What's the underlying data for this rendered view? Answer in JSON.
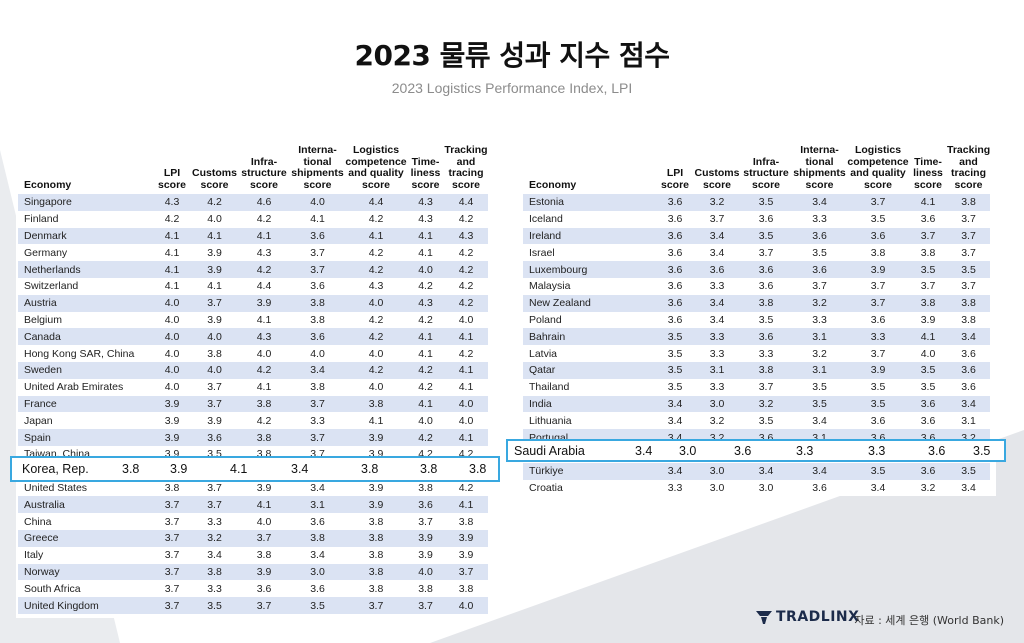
{
  "title": "2023 물류 성과 지수 점수",
  "subtitle": "2023 Logistics Performance Index, LPI",
  "headers": {
    "economy": "Economy",
    "lpi": [
      "LPI",
      "score"
    ],
    "customs": [
      "Customs",
      "score"
    ],
    "infra": [
      "Infra-",
      "structure",
      "score"
    ],
    "intl": [
      "Interna-",
      "tional",
      "shipments",
      "score"
    ],
    "logistics": [
      "Logistics",
      "competence",
      "and quality",
      "score"
    ],
    "timeliness": [
      "Time-",
      "liness",
      "score"
    ],
    "tracking": [
      "Tracking",
      "and",
      "tracing",
      "score"
    ]
  },
  "left_rows": [
    [
      "Singapore",
      "4.3",
      "4.2",
      "4.6",
      "4.0",
      "4.4",
      "4.3",
      "4.4"
    ],
    [
      "Finland",
      "4.2",
      "4.0",
      "4.2",
      "4.1",
      "4.2",
      "4.3",
      "4.2"
    ],
    [
      "Denmark",
      "4.1",
      "4.1",
      "4.1",
      "3.6",
      "4.1",
      "4.1",
      "4.3"
    ],
    [
      "Germany",
      "4.1",
      "3.9",
      "4.3",
      "3.7",
      "4.2",
      "4.1",
      "4.2"
    ],
    [
      "Netherlands",
      "4.1",
      "3.9",
      "4.2",
      "3.7",
      "4.2",
      "4.0",
      "4.2"
    ],
    [
      "Switzerland",
      "4.1",
      "4.1",
      "4.4",
      "3.6",
      "4.3",
      "4.2",
      "4.2"
    ],
    [
      "Austria",
      "4.0",
      "3.7",
      "3.9",
      "3.8",
      "4.0",
      "4.3",
      "4.2"
    ],
    [
      "Belgium",
      "4.0",
      "3.9",
      "4.1",
      "3.8",
      "4.2",
      "4.2",
      "4.0"
    ],
    [
      "Canada",
      "4.0",
      "4.0",
      "4.3",
      "3.6",
      "4.2",
      "4.1",
      "4.1"
    ],
    [
      "Hong Kong SAR, China",
      "4.0",
      "3.8",
      "4.0",
      "4.0",
      "4.0",
      "4.1",
      "4.2"
    ],
    [
      "Sweden",
      "4.0",
      "4.0",
      "4.2",
      "3.4",
      "4.2",
      "4.2",
      "4.1"
    ],
    [
      "United Arab Emirates",
      "4.0",
      "3.7",
      "4.1",
      "3.8",
      "4.0",
      "4.2",
      "4.1"
    ],
    [
      "France",
      "3.9",
      "3.7",
      "3.8",
      "3.7",
      "3.8",
      "4.1",
      "4.0"
    ],
    [
      "Japan",
      "3.9",
      "3.9",
      "4.2",
      "3.3",
      "4.1",
      "4.0",
      "4.0"
    ],
    [
      "Spain",
      "3.9",
      "3.6",
      "3.8",
      "3.7",
      "3.9",
      "4.2",
      "4.1"
    ],
    [
      "Taiwan, China",
      "3.9",
      "3.5",
      "3.8",
      "3.7",
      "3.9",
      "4.2",
      "4.2"
    ],
    [
      "Korea, Rep.",
      "3.8",
      "3.9",
      "4.1",
      "3.4",
      "3.8",
      "3.8",
      "3.8"
    ],
    [
      "United States",
      "3.8",
      "3.7",
      "3.9",
      "3.4",
      "3.9",
      "3.8",
      "4.2"
    ],
    [
      "Australia",
      "3.7",
      "3.7",
      "4.1",
      "3.1",
      "3.9",
      "3.6",
      "4.1"
    ],
    [
      "China",
      "3.7",
      "3.3",
      "4.0",
      "3.6",
      "3.8",
      "3.7",
      "3.8"
    ],
    [
      "Greece",
      "3.7",
      "3.2",
      "3.7",
      "3.8",
      "3.8",
      "3.9",
      "3.9"
    ],
    [
      "Italy",
      "3.7",
      "3.4",
      "3.8",
      "3.4",
      "3.8",
      "3.9",
      "3.9"
    ],
    [
      "Norway",
      "3.7",
      "3.8",
      "3.9",
      "3.0",
      "3.8",
      "4.0",
      "3.7"
    ],
    [
      "South Africa",
      "3.7",
      "3.3",
      "3.6",
      "3.6",
      "3.8",
      "3.8",
      "3.8"
    ],
    [
      "United Kingdom",
      "3.7",
      "3.5",
      "3.7",
      "3.5",
      "3.7",
      "3.7",
      "4.0"
    ]
  ],
  "right_rows": [
    [
      "Estonia",
      "3.6",
      "3.2",
      "3.5",
      "3.4",
      "3.7",
      "4.1",
      "3.8"
    ],
    [
      "Iceland",
      "3.6",
      "3.7",
      "3.6",
      "3.3",
      "3.5",
      "3.6",
      "3.7"
    ],
    [
      "Ireland",
      "3.6",
      "3.4",
      "3.5",
      "3.6",
      "3.6",
      "3.7",
      "3.7"
    ],
    [
      "Israel",
      "3.6",
      "3.4",
      "3.7",
      "3.5",
      "3.8",
      "3.8",
      "3.7"
    ],
    [
      "Luxembourg",
      "3.6",
      "3.6",
      "3.6",
      "3.6",
      "3.9",
      "3.5",
      "3.5"
    ],
    [
      "Malaysia",
      "3.6",
      "3.3",
      "3.6",
      "3.7",
      "3.7",
      "3.7",
      "3.7"
    ],
    [
      "New Zealand",
      "3.6",
      "3.4",
      "3.8",
      "3.2",
      "3.7",
      "3.8",
      "3.8"
    ],
    [
      "Poland",
      "3.6",
      "3.4",
      "3.5",
      "3.3",
      "3.6",
      "3.9",
      "3.8"
    ],
    [
      "Bahrain",
      "3.5",
      "3.3",
      "3.6",
      "3.1",
      "3.3",
      "4.1",
      "3.4"
    ],
    [
      "Latvia",
      "3.5",
      "3.3",
      "3.3",
      "3.2",
      "3.7",
      "4.0",
      "3.6"
    ],
    [
      "Qatar",
      "3.5",
      "3.1",
      "3.8",
      "3.1",
      "3.9",
      "3.5",
      "3.6"
    ],
    [
      "Thailand",
      "3.5",
      "3.3",
      "3.7",
      "3.5",
      "3.5",
      "3.5",
      "3.6"
    ],
    [
      "India",
      "3.4",
      "3.0",
      "3.2",
      "3.5",
      "3.5",
      "3.6",
      "3.4"
    ],
    [
      "Lithuania",
      "3.4",
      "3.2",
      "3.5",
      "3.4",
      "3.6",
      "3.6",
      "3.1"
    ],
    [
      "Portugal",
      "3.4",
      "3.2",
      "3.6",
      "3.1",
      "3.6",
      "3.6",
      "3.2"
    ],
    [
      "Saudi Arabia",
      "3.4",
      "3.0",
      "3.6",
      "3.3",
      "3.3",
      "3.6",
      "3.5"
    ],
    [
      "Türkiye",
      "3.4",
      "3.0",
      "3.4",
      "3.4",
      "3.5",
      "3.6",
      "3.5"
    ],
    [
      "Croatia",
      "3.3",
      "3.0",
      "3.0",
      "3.6",
      "3.4",
      "3.2",
      "3.4"
    ]
  ],
  "highlight_korea": [
    "Korea, Rep.",
    "3.8",
    "3.9",
    "4.1",
    "3.4",
    "3.8",
    "3.8",
    "3.8"
  ],
  "highlight_saudi": [
    "Saudi Arabia",
    "3.4",
    "3.0",
    "3.6",
    "3.3",
    "3.3",
    "3.6",
    "3.5"
  ],
  "logo_text": "TRADLINX",
  "source": "자료 : 세계 은행 (World Bank)",
  "colors": {
    "row_band": "#dbe3f3",
    "highlight_border": "#39a8e0",
    "bg_shape": "#e4e6ea",
    "logo": "#1c2b4a"
  }
}
